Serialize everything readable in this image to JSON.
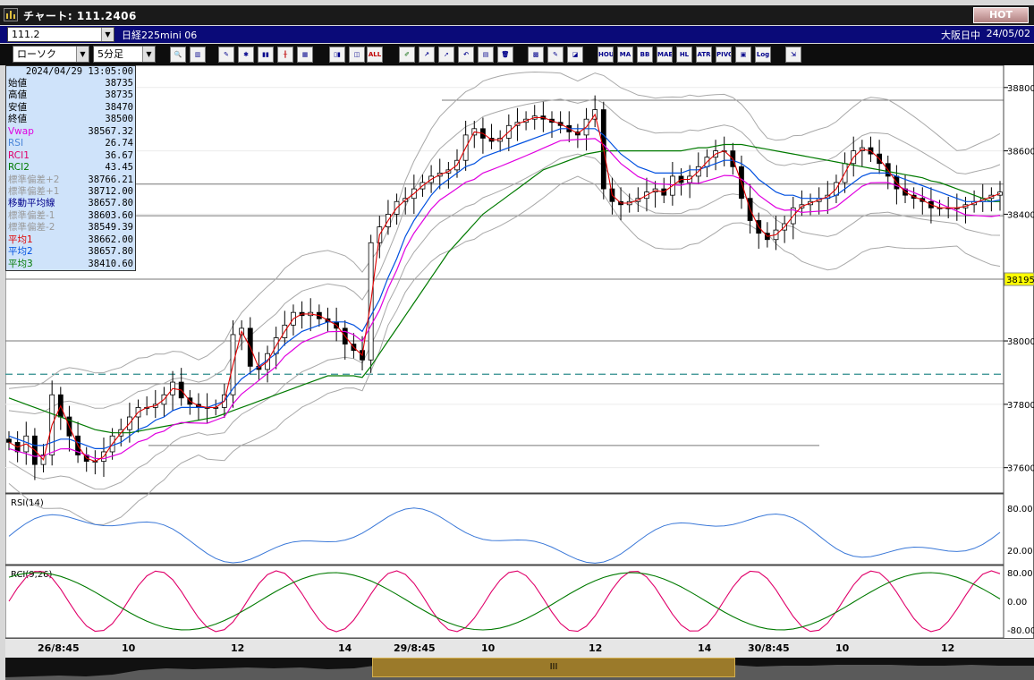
{
  "window": {
    "title": "チャート: 111.2406",
    "hot_label": "HOT"
  },
  "symbol_bar": {
    "code": "111.2",
    "name": "日経225mini 06",
    "market": "大阪日中",
    "date": "24/05/02"
  },
  "toolbar": {
    "chart_type": "ローソク",
    "interval": "5分足",
    "buttons": [
      {
        "name": "zoom-icon",
        "label": "🔍"
      },
      {
        "name": "bars-icon",
        "label": "▥"
      },
      {
        "name": "eraser-icon",
        "label": "✎"
      },
      {
        "name": "bug-icon",
        "label": "✱"
      },
      {
        "name": "bar-chart-icon",
        "label": "▮▮"
      },
      {
        "name": "candle-icon",
        "label": "╂"
      },
      {
        "name": "gray-icon",
        "label": "▦"
      },
      {
        "name": "candle-pair-icon",
        "label": "▯▮"
      },
      {
        "name": "candle-single-icon",
        "label": "◫"
      },
      {
        "name": "all-icon",
        "label": "ALL"
      },
      {
        "name": "pencil-icon",
        "label": "✐"
      },
      {
        "name": "trendline-icon",
        "label": "↗"
      },
      {
        "name": "cursor-icon",
        "label": "➚"
      },
      {
        "name": "undo-icon",
        "label": "↶"
      },
      {
        "name": "list-icon",
        "label": "▤"
      },
      {
        "name": "trash-icon",
        "label": "🗑"
      },
      {
        "name": "pattern-icon",
        "label": "▩"
      },
      {
        "name": "palette-icon",
        "label": "✎"
      },
      {
        "name": "rainbow-icon",
        "label": "◪"
      },
      {
        "name": "hour-icon",
        "label": "HOUR"
      },
      {
        "name": "ma-icon",
        "label": "MA"
      },
      {
        "name": "bb-icon",
        "label": "BB"
      },
      {
        "name": "mae-icon",
        "label": "MAE"
      },
      {
        "name": "hl-icon",
        "label": "HL"
      },
      {
        "name": "atr-icon",
        "label": "ATR"
      },
      {
        "name": "pivot-icon",
        "label": "PIVOT"
      },
      {
        "name": "frame-icon",
        "label": "▣"
      },
      {
        "name": "log-icon",
        "label": "Log"
      },
      {
        "name": "export-icon",
        "label": "⇲"
      }
    ]
  },
  "info_panel": {
    "datetime": "2024/04/29  13:05:00",
    "rows": [
      {
        "label": "始値",
        "value": "38735",
        "color": "#000000"
      },
      {
        "label": "高値",
        "value": "38735",
        "color": "#000000"
      },
      {
        "label": "安値",
        "value": "38470",
        "color": "#000000"
      },
      {
        "label": "終値",
        "value": "38500",
        "color": "#000000"
      },
      {
        "label": "Vwap",
        "value": "38567.32",
        "color": "#e000e0"
      },
      {
        "label": "RSI",
        "value": "26.74",
        "color": "#4a86d8"
      },
      {
        "label": "RCI1",
        "value": "36.67",
        "color": "#e0006a"
      },
      {
        "label": "RCI2",
        "value": "43.45",
        "color": "#007a00"
      },
      {
        "label": "標準偏差+2",
        "value": "38766.21",
        "color": "#9a9a9a"
      },
      {
        "label": "標準偏差+1",
        "value": "38712.00",
        "color": "#9a9a9a"
      },
      {
        "label": "移動平均線",
        "value": "38657.80",
        "color": "#00008b"
      },
      {
        "label": "標準偏差-1",
        "value": "38603.60",
        "color": "#9a9a9a"
      },
      {
        "label": "標準偏差-2",
        "value": "38549.39",
        "color": "#9a9a9a"
      },
      {
        "label": "平均1",
        "value": "38662.00",
        "color": "#e00000"
      },
      {
        "label": "平均2",
        "value": "38657.80",
        "color": "#0050e0"
      },
      {
        "label": "平均3",
        "value": "38410.60",
        "color": "#007a00"
      }
    ]
  },
  "price_axis": [
    "38800",
    "38600",
    "38400",
    "38195",
    "38000",
    "37800",
    "37600"
  ],
  "current_price": "38195",
  "rsi_panel": {
    "title": "RSI(14)",
    "ticks": [
      "80.00",
      "20.00"
    ]
  },
  "rci_panel": {
    "title": "RCI(9,26)",
    "ticks": [
      "80.00",
      "0.00",
      "-80.00"
    ]
  },
  "x_axis_labels": [
    "26/8:45",
    "10",
    "12",
    "14",
    "29/8:45",
    "10",
    "12",
    "14",
    "30/8:45",
    "10",
    "12"
  ],
  "scrollbar": {
    "thumb_label": "III"
  },
  "chart_data": {
    "type": "line",
    "ylim": [
      37520,
      38870
    ],
    "series": [
      {
        "values": [
          37680,
          37650,
          37700,
          37610,
          37640,
          37830,
          37760,
          37700,
          37640,
          37620,
          37620,
          37650,
          37700,
          37720,
          37760,
          37790,
          37790,
          37800,
          37830,
          37870,
          37820,
          37800,
          37790,
          37790,
          37790,
          37830,
          38020,
          38040,
          37920,
          37910,
          37960,
          38010,
          38050,
          38090,
          38080,
          38090,
          38070,
          38060,
          38040,
          37990,
          37970,
          37940,
          38310,
          38360,
          38400,
          38440,
          38450,
          38480,
          38500,
          38520,
          38530,
          38540,
          38570,
          38650,
          38670,
          38640,
          38630,
          38640,
          38680,
          38690,
          38700,
          38710,
          38700,
          38690,
          38680,
          38660,
          38650,
          38700,
          38730,
          38480,
          38440,
          38430,
          38440,
          38450,
          38470,
          38480,
          38460,
          38520,
          38500,
          38520,
          38550,
          38580,
          38600,
          38600,
          38550,
          38450,
          38380,
          38340,
          38320,
          38350,
          38370,
          38420,
          38430,
          38440,
          38450,
          38460,
          38500,
          38560,
          38600,
          38610,
          38590,
          38560,
          38520,
          38480,
          38460,
          38450,
          38440,
          38420,
          38420,
          38420,
          38420,
          38430,
          38440,
          38450,
          38460,
          38470
        ]
      },
      {
        "values": [
          37700,
          37690,
          37680,
          37670,
          37670,
          37680,
          37690,
          37690,
          37680,
          37670,
          37660,
          37660,
          37670,
          37680,
          37700,
          37720,
          37730,
          37750,
          37760,
          37780,
          37790,
          37790,
          37790,
          37790,
          37800,
          37810,
          37850,
          37880,
          37900,
          37920,
          37940,
          37960,
          37990,
          38010,
          38030,
          38040,
          38050,
          38060,
          38060,
          38060,
          38050,
          38030,
          38080,
          38130,
          38200,
          38260,
          38330,
          38380,
          38420,
          38460,
          38490,
          38510,
          38530,
          38550,
          38560,
          38580,
          38590,
          38600,
          38610,
          38620,
          38630,
          38640,
          38650,
          38660,
          38670,
          38670,
          38670,
          38670,
          38670,
          38650,
          38620,
          38590,
          38570,
          38550,
          38540,
          38530,
          38530,
          38530,
          38530,
          38540,
          38540,
          38550,
          38560,
          38570,
          38570,
          38560,
          38540,
          38510,
          38490,
          38470,
          38460,
          38460,
          38450,
          38450,
          38450,
          38450,
          38460,
          38480,
          38500,
          38520,
          38530,
          38530,
          38530,
          38520,
          38510,
          38500,
          38490,
          38480,
          38470,
          38460,
          38450,
          38440,
          38440,
          38440,
          38440,
          38445
        ]
      },
      {
        "values": [
          37820,
          37810,
          37800,
          37790,
          37780,
          37770,
          37760,
          37750,
          37740,
          37730,
          37720,
          37715,
          37710,
          37710,
          37710,
          37715,
          37720,
          37725,
          37730,
          37735,
          37740,
          37745,
          37750,
          37755,
          37760,
          37770,
          37780,
          37790,
          37800,
          37810,
          37820,
          37830,
          37840,
          37850,
          37860,
          37870,
          37880,
          37890,
          37890,
          37890,
          37890,
          37885,
          37920,
          37960,
          38000,
          38040,
          38080,
          38120,
          38160,
          38200,
          38240,
          38280,
          38310,
          38340,
          38370,
          38400,
          38420,
          38440,
          38460,
          38480,
          38500,
          38520,
          38540,
          38550,
          38560,
          38570,
          38580,
          38590,
          38595,
          38600,
          38600,
          38600,
          38600,
          38600,
          38600,
          38600,
          38600,
          38600,
          38600,
          38605,
          38610,
          38610,
          38615,
          38620,
          38620,
          38620,
          38615,
          38610,
          38605,
          38600,
          38595,
          38590,
          38585,
          38580,
          38575,
          38570,
          38565,
          38560,
          38555,
          38550,
          38545,
          38540,
          38535,
          38530,
          38525,
          38520,
          38515,
          38505,
          38500,
          38490,
          38480,
          38470,
          38460,
          38450,
          38440,
          38440
        ]
      }
    ]
  }
}
